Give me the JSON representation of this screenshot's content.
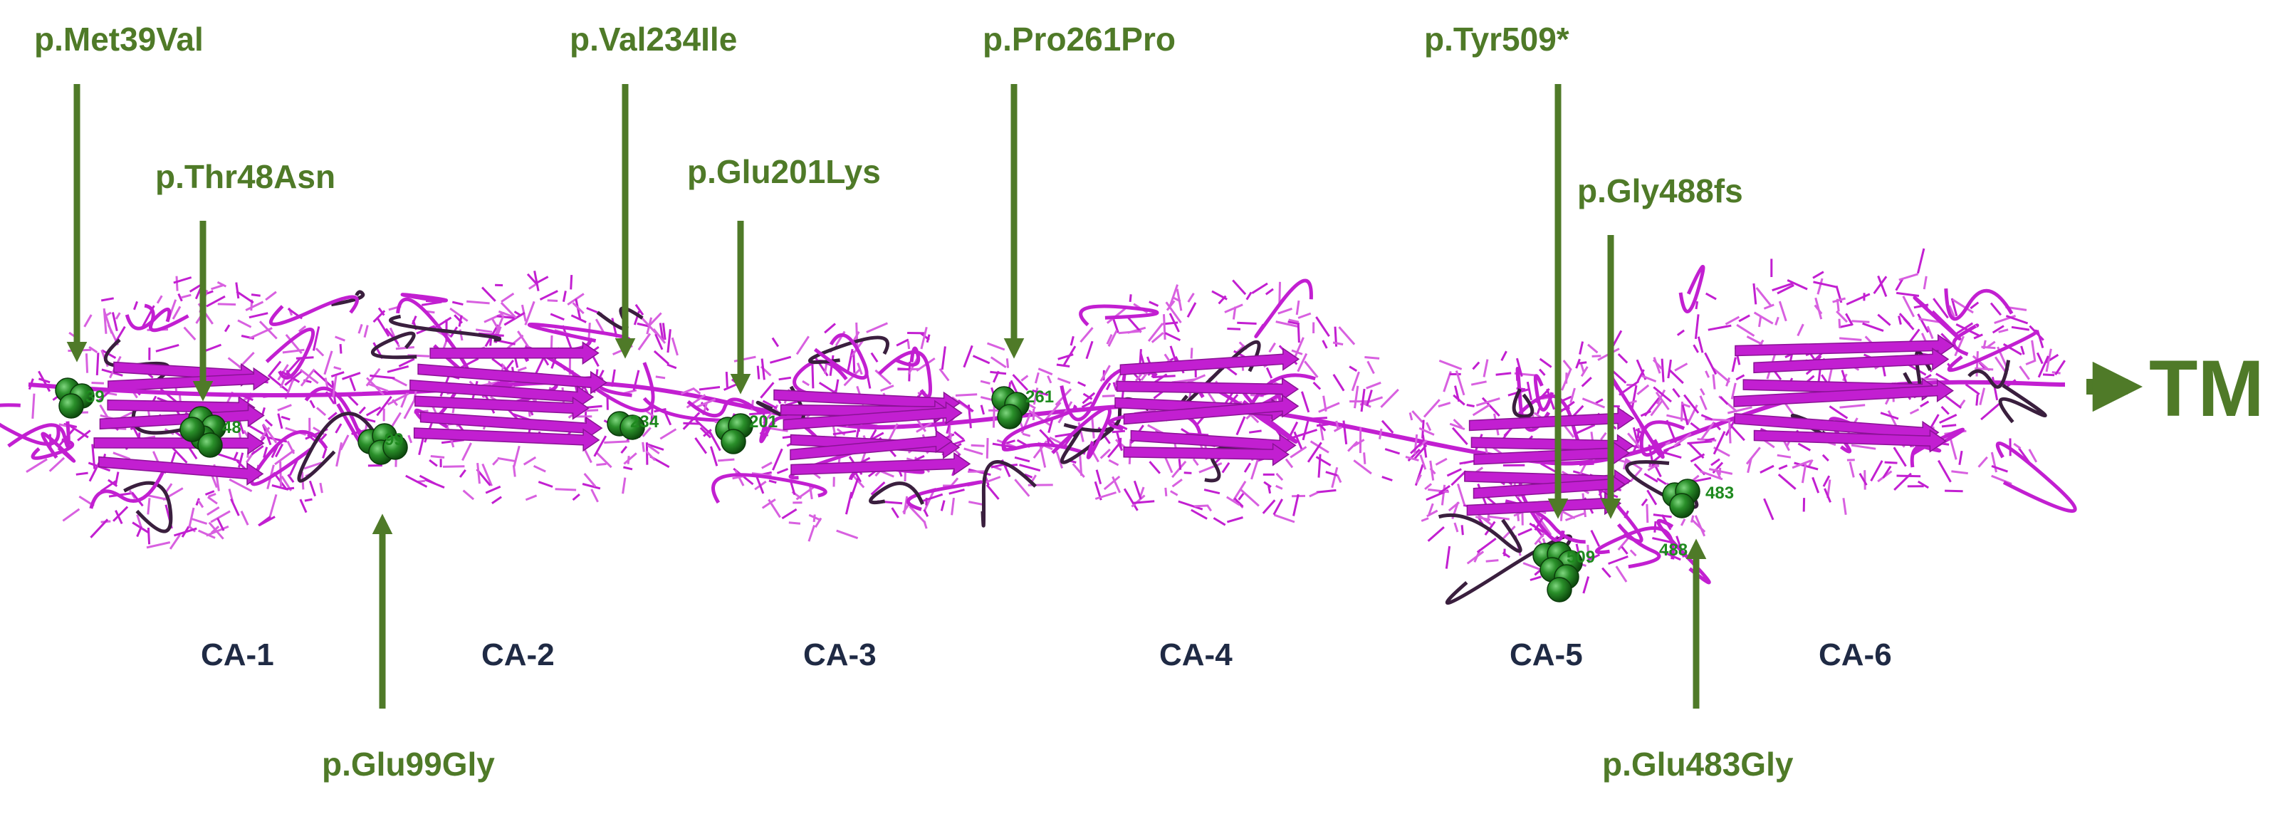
{
  "mutations": [
    {
      "id": "m39",
      "label": "p.Met39Val",
      "residue": "39"
    },
    {
      "id": "t48",
      "label": "p.Thr48Asn",
      "residue": "48"
    },
    {
      "id": "g99",
      "label": "p.Glu99Gly",
      "residue": "99"
    },
    {
      "id": "g201",
      "label": "p.Glu201Lys",
      "residue": "201"
    },
    {
      "id": "v234",
      "label": "p.Val234Ile",
      "residue": "234"
    },
    {
      "id": "p261",
      "label": "p.Pro261Pro",
      "residue": "261"
    },
    {
      "id": "g483",
      "label": "p.Glu483Gly",
      "residue": "483"
    },
    {
      "id": "g488",
      "label": "p.Gly488fs",
      "residue": "488"
    },
    {
      "id": "y509",
      "label": "p.Tyr509*",
      "residue": "509"
    }
  ],
  "domains": [
    "CA-1",
    "CA-2",
    "CA-3",
    "CA-4",
    "CA-5",
    "CA-6"
  ],
  "terminus": {
    "label": "TM"
  },
  "colors": {
    "protein": "#c21fd1",
    "protein_light": "#d860e0",
    "mutation_sphere": "#1f7a1f",
    "label_green": "#4f7a28",
    "domain_text": "#1f2a44"
  }
}
